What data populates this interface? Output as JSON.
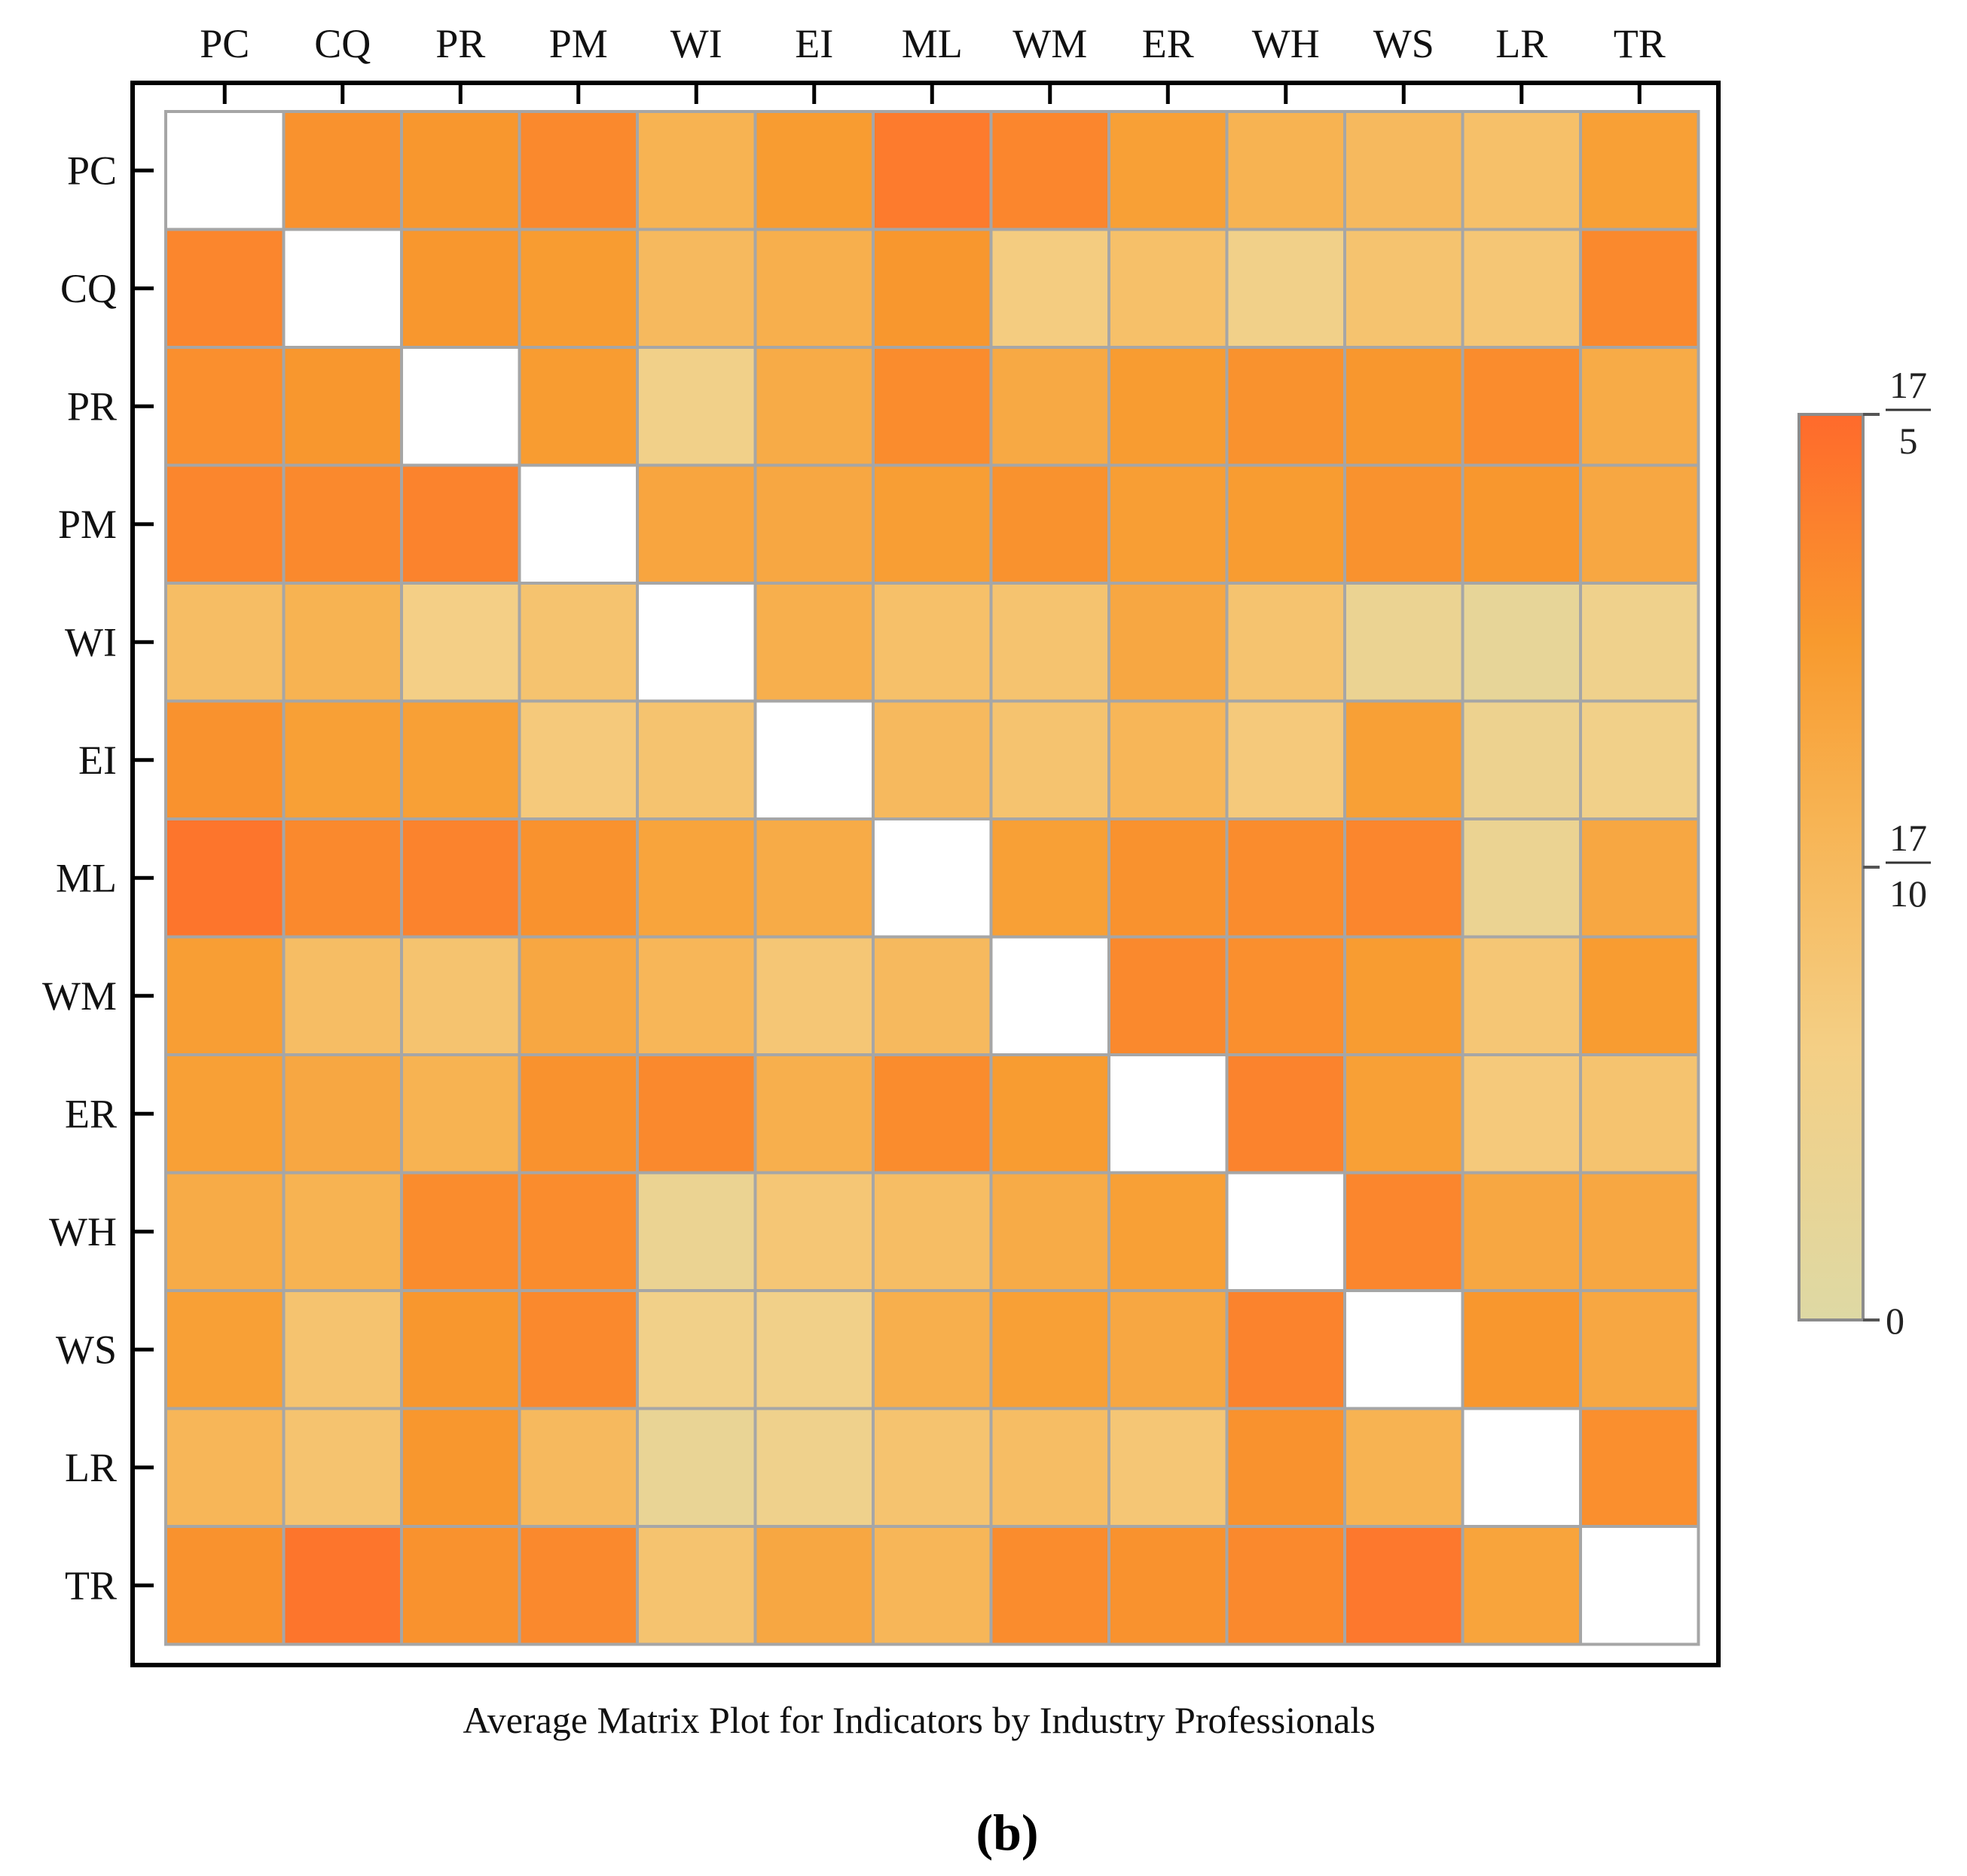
{
  "chart_data": {
    "type": "heatmap",
    "title": "Average Matrix Plot for Indicators by Industry Professionals",
    "panel_label": "(b)",
    "labels": [
      "PC",
      "CQ",
      "PR",
      "PM",
      "WI",
      "EI",
      "ML",
      "WM",
      "ER",
      "WH",
      "WS",
      "LR",
      "TR"
    ],
    "values": [
      [
        null,
        2.7,
        2.6,
        2.85,
        1.9,
        2.5,
        3.1,
        2.9,
        2.4,
        1.9,
        1.7,
        1.5,
        2.4
      ],
      [
        2.9,
        null,
        2.6,
        2.5,
        1.7,
        2.0,
        2.6,
        1.1,
        1.5,
        0.9,
        1.4,
        1.3,
        2.85
      ],
      [
        2.75,
        2.6,
        null,
        2.5,
        0.9,
        2.1,
        2.8,
        2.15,
        2.5,
        2.7,
        2.6,
        2.8,
        2.1
      ],
      [
        2.9,
        2.85,
        2.95,
        null,
        2.25,
        2.2,
        2.45,
        2.7,
        2.45,
        2.5,
        2.7,
        2.6,
        2.2
      ],
      [
        1.6,
        1.9,
        1.0,
        1.4,
        null,
        2.0,
        1.5,
        1.4,
        2.2,
        1.4,
        0.6,
        0.4,
        0.8
      ],
      [
        2.7,
        2.4,
        2.4,
        1.2,
        1.4,
        null,
        1.7,
        1.4,
        1.8,
        1.2,
        2.4,
        0.7,
        0.9
      ],
      [
        3.2,
        2.85,
        2.95,
        2.7,
        2.3,
        2.1,
        null,
        2.4,
        2.7,
        2.8,
        2.9,
        0.6,
        2.2
      ],
      [
        2.45,
        1.6,
        1.4,
        2.2,
        1.8,
        1.3,
        1.7,
        null,
        2.85,
        2.75,
        2.5,
        1.3,
        2.5
      ],
      [
        2.4,
        2.2,
        1.9,
        2.7,
        2.85,
        2.0,
        2.8,
        2.5,
        null,
        2.95,
        2.4,
        1.2,
        1.4
      ],
      [
        2.1,
        1.9,
        2.8,
        2.8,
        0.6,
        1.3,
        1.6,
        2.1,
        2.4,
        null,
        2.9,
        2.2,
        2.2
      ],
      [
        2.4,
        1.4,
        2.6,
        2.85,
        0.9,
        0.9,
        2.0,
        2.4,
        2.2,
        2.95,
        null,
        2.6,
        2.2
      ],
      [
        1.8,
        1.4,
        2.6,
        1.7,
        0.5,
        0.8,
        1.4,
        1.6,
        1.3,
        2.7,
        1.9,
        null,
        2.75
      ],
      [
        2.7,
        3.2,
        2.7,
        2.85,
        1.4,
        2.2,
        1.8,
        2.8,
        2.7,
        2.85,
        3.15,
        2.3,
        null
      ]
    ],
    "colorbar": {
      "min": 0,
      "max": 3.4,
      "ticks": [
        {
          "value": 0,
          "label": "0"
        },
        {
          "value": 1.7,
          "numerator": "17",
          "denominator": "10"
        },
        {
          "value": 3.4,
          "numerator": "17",
          "denominator": "5"
        }
      ]
    },
    "color_stops": [
      {
        "t": 0.0,
        "color": "#DED9A4"
      },
      {
        "t": 0.3,
        "color": "#F4CF85"
      },
      {
        "t": 0.55,
        "color": "#F7B454"
      },
      {
        "t": 0.75,
        "color": "#F89A2E"
      },
      {
        "t": 1.0,
        "color": "#FF6A2C"
      }
    ],
    "diagonal_color": "#FFFFFF",
    "grid_color": "#A6A6A6",
    "frame_color": "#000000"
  }
}
